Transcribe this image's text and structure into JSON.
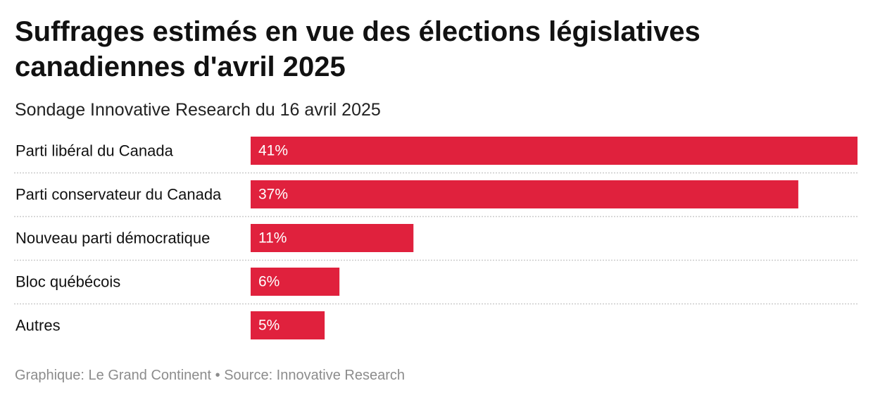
{
  "title": "Suffrages estimés en vue des élections législatives canadiennes d'avril 2025",
  "subtitle": "Sondage Innovative Research du 16 avril 2025",
  "footer": {
    "credit": "Graphique: Le Grand Continent",
    "separator": " • ",
    "source": "Source: Innovative Research"
  },
  "colors": {
    "bar": "#e0213d",
    "divider": "#cccccc"
  },
  "chart_data": {
    "type": "bar",
    "orientation": "horizontal",
    "categories": [
      "Parti libéral du Canada",
      "Parti conservateur du Canada",
      "Nouveau parti démocratique",
      "Bloc québécois",
      "Autres"
    ],
    "values": [
      41,
      37,
      11,
      6,
      5
    ],
    "value_labels": [
      "41%",
      "37%",
      "11%",
      "6%",
      "5%"
    ],
    "xlim": [
      0,
      41
    ],
    "grid": false,
    "legend": "none"
  }
}
